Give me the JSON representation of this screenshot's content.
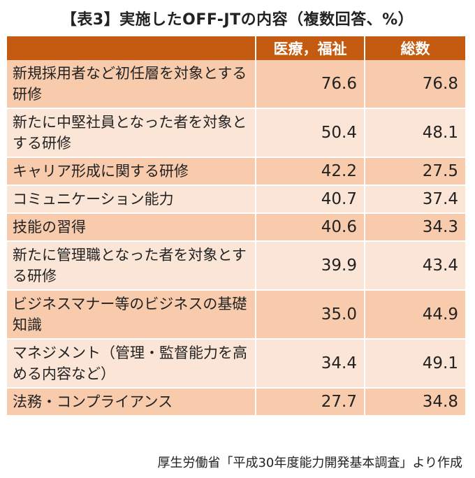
{
  "title": "【表3】実施したOFF-JTの内容（複数回答、%）",
  "table": {
    "headers": [
      "",
      "医療，福祉",
      "総数"
    ],
    "rows": [
      {
        "label": "新規採用者など初任層を対象とする研修",
        "a": "76.6",
        "b": "76.8"
      },
      {
        "label": "新たに中堅社員となった者を対象とする研修",
        "a": "50.4",
        "b": "48.1"
      },
      {
        "label": "キャリア形成に関する研修",
        "a": "42.2",
        "b": "27.5"
      },
      {
        "label": "コミュニケーション能力",
        "a": "40.7",
        "b": "37.4"
      },
      {
        "label": "技能の習得",
        "a": "40.6",
        "b": "34.3"
      },
      {
        "label": "新たに管理職となった者を対象とする研修",
        "a": "39.9",
        "b": "43.4"
      },
      {
        "label": "ビジネスマナー等のビジネスの基礎知識",
        "a": "35.0",
        "b": "44.9"
      },
      {
        "label": "マネジメント（管理・監督能力を高める内容など）",
        "a": "34.4",
        "b": "49.1"
      },
      {
        "label": "法務・コンプライアンス",
        "a": "27.7",
        "b": "34.8"
      }
    ]
  },
  "source": "厚生労働省「平成30年度能力開発基本調査」より作成",
  "colors": {
    "header": "#c55a11",
    "row_dark": "#f8cbad",
    "row_light": "#fbe5d6"
  }
}
